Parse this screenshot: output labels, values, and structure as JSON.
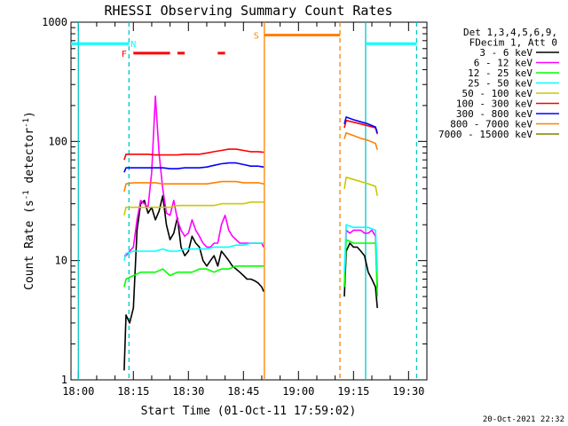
{
  "chart_data": {
    "type": "line",
    "title": "RHESSI Observing Summary Count Rates",
    "xlabel": "Start Time (01-Oct-11 17:59:02)",
    "ylabel_main": "Count Rate (s",
    "ylabel_sup1": "-1",
    "ylabel_mid": " detector",
    "ylabel_sup2": "-1",
    "ylabel_end": ")",
    "y_scale": "log",
    "ylim": [
      1,
      1000
    ],
    "xlim_minutes": [
      -1,
      96
    ],
    "x_ticks": [
      {
        "m": 1,
        "label": "18:00"
      },
      {
        "m": 16,
        "label": "18:15"
      },
      {
        "m": 31,
        "label": "18:30"
      },
      {
        "m": 46,
        "label": "18:45"
      },
      {
        "m": 61,
        "label": "19:00"
      },
      {
        "m": 76,
        "label": "19:15"
      },
      {
        "m": 91,
        "label": "19:30"
      }
    ],
    "y_ticks": [
      {
        "v": 1,
        "label": "1"
      },
      {
        "v": 10,
        "label": "10"
      },
      {
        "v": 100,
        "label": "100"
      },
      {
        "v": 1000,
        "label": "1000"
      }
    ],
    "legend_header": [
      "Det 1,3,4,5,6,9,",
      "FDecim 1, Att 0"
    ],
    "series": [
      {
        "name": "3 - 6 keV",
        "color": "#000000",
        "x": [
          13.5,
          14,
          15,
          16,
          17,
          18,
          19,
          20,
          21,
          22,
          23,
          24,
          25,
          26,
          27,
          28,
          29,
          30,
          31,
          32,
          33,
          34,
          35,
          36,
          37,
          38,
          39,
          40,
          41,
          42,
          43,
          44,
          45,
          46,
          47,
          48,
          49,
          50,
          51,
          51.5,
          73.5,
          74,
          75,
          76,
          77,
          78,
          79,
          80,
          81,
          82,
          82.5
        ],
        "y": [
          1.2,
          3.5,
          3,
          4,
          18,
          30,
          32,
          25,
          28,
          22,
          26,
          35,
          20,
          15,
          17,
          23,
          13,
          11,
          12,
          16,
          14,
          13,
          10,
          9,
          10,
          11,
          9,
          12,
          11,
          10,
          9,
          8.5,
          8,
          7.5,
          7,
          7,
          6.8,
          6.5,
          6,
          5.5,
          5,
          12,
          14,
          13,
          13,
          12,
          11,
          8,
          7,
          6,
          4
        ]
      },
      {
        "name": "6 - 12 keV",
        "color": "#ff00ff",
        "x": [
          13.5,
          14,
          15,
          16,
          17,
          18,
          19,
          20,
          21,
          22,
          23,
          24,
          25,
          26,
          27,
          28,
          29,
          30,
          31,
          32,
          33,
          34,
          35,
          36,
          37,
          38,
          39,
          40,
          41,
          42,
          43,
          44,
          45,
          46,
          47,
          48,
          49,
          50,
          51,
          51.5,
          73.5,
          74,
          75,
          76,
          77,
          78,
          79,
          80,
          81,
          82,
          82.5
        ],
        "y": [
          11,
          11,
          12,
          13,
          22,
          32,
          30,
          28,
          55,
          240,
          80,
          40,
          25,
          24,
          32,
          22,
          18,
          16,
          17,
          22,
          18,
          16,
          14,
          13,
          13,
          14,
          14,
          20,
          24,
          18,
          16,
          15,
          14,
          14,
          14,
          14,
          14,
          14,
          14,
          13,
          6,
          18,
          17,
          18,
          18,
          18,
          17,
          17,
          18,
          16,
          6
        ]
      },
      {
        "name": "12 - 25 keV",
        "color": "#00ff00",
        "x": [
          13.5,
          14,
          16,
          18,
          20,
          22,
          24,
          26,
          28,
          30,
          32,
          34,
          36,
          38,
          40,
          42,
          44,
          46,
          48,
          50,
          51.5,
          73.5,
          74,
          76,
          78,
          80,
          82,
          82.5
        ],
        "y": [
          6,
          7,
          7.5,
          8,
          8,
          8,
          8.5,
          7.5,
          8,
          8,
          8,
          8.5,
          8.5,
          8,
          8.5,
          8.5,
          9,
          9,
          9,
          9,
          9,
          6,
          15,
          14,
          14,
          14,
          14,
          5
        ]
      },
      {
        "name": "25 - 50 keV",
        "color": "#00ffff",
        "x": [
          13.5,
          14,
          16,
          18,
          20,
          22,
          24,
          26,
          28,
          30,
          32,
          34,
          36,
          38,
          40,
          42,
          44,
          46,
          48,
          50,
          51.5,
          73.5,
          74,
          76,
          78,
          80,
          82,
          82.5
        ],
        "y": [
          10,
          11.5,
          12,
          12,
          12,
          12,
          12.5,
          12,
          12,
          12.5,
          12.5,
          12.5,
          12.5,
          13,
          13,
          13,
          13.5,
          13.5,
          14,
          14,
          14,
          8,
          20,
          19,
          19,
          19,
          18,
          8
        ]
      },
      {
        "name": "50 - 100 keV",
        "color": "#c8c800",
        "x": [
          13.5,
          14,
          16,
          18,
          20,
          22,
          24,
          26,
          28,
          30,
          32,
          34,
          36,
          38,
          40,
          42,
          44,
          46,
          48,
          50,
          51.5,
          73.5,
          74,
          76,
          78,
          80,
          82,
          82.5
        ],
        "y": [
          24,
          28,
          28,
          28,
          28,
          28,
          28,
          28,
          29,
          29,
          29,
          29,
          29,
          29,
          30,
          30,
          30,
          30,
          31,
          31,
          31,
          40,
          50,
          48,
          46,
          44,
          42,
          35
        ]
      },
      {
        "name": "100 - 300 keV",
        "color": "#ff0000",
        "x": [
          13.5,
          14,
          16,
          18,
          20,
          22,
          24,
          26,
          28,
          30,
          32,
          34,
          36,
          38,
          40,
          42,
          44,
          46,
          48,
          50,
          51.5,
          73.5,
          74,
          76,
          78,
          80,
          82,
          82.5
        ],
        "y": [
          70,
          78,
          78,
          78,
          78,
          77,
          77,
          77,
          77,
          78,
          78,
          78,
          80,
          82,
          84,
          86,
          86,
          84,
          82,
          82,
          81,
          130,
          150,
          145,
          140,
          135,
          130,
          115
        ]
      },
      {
        "name": "300 - 800 keV",
        "color": "#0000ff",
        "x": [
          13.5,
          14,
          16,
          18,
          20,
          22,
          24,
          26,
          28,
          30,
          32,
          34,
          36,
          38,
          40,
          42,
          44,
          46,
          48,
          50,
          51.5,
          73.5,
          74,
          76,
          78,
          80,
          82,
          82.5
        ],
        "y": [
          55,
          60,
          60,
          60,
          60,
          60,
          60,
          59,
          59,
          60,
          60,
          60,
          61,
          63,
          65,
          66,
          66,
          64,
          62,
          62,
          61,
          140,
          160,
          152,
          146,
          140,
          132,
          118
        ]
      },
      {
        "name": "800 - 7000 keV",
        "color": "#ff8000",
        "x": [
          13.5,
          14,
          16,
          18,
          20,
          22,
          24,
          26,
          28,
          30,
          32,
          34,
          36,
          38,
          40,
          42,
          44,
          46,
          48,
          50,
          51.5,
          73.5,
          74,
          76,
          78,
          80,
          82,
          82.5
        ],
        "y": [
          38,
          44,
          45,
          45,
          45,
          45,
          44,
          44,
          44,
          44,
          44,
          44,
          44,
          45,
          46,
          46,
          46,
          45,
          45,
          45,
          44,
          105,
          118,
          112,
          106,
          102,
          96,
          85
        ]
      },
      {
        "name": "7000 - 15000 keV",
        "color": "#808000",
        "x": [],
        "y": []
      }
    ],
    "shaded_spans": [],
    "attenuator_lines": [
      {
        "label": "",
        "color": "#00c8c8",
        "style": "solid",
        "x": 1
      },
      {
        "label": "",
        "color": "#00c8c8",
        "style": "dashed",
        "x": 14.8
      },
      {
        "label": "",
        "color": "#ff8000",
        "style": "solid",
        "x": 51.7
      },
      {
        "label": "",
        "color": "#ff8000",
        "style": "dashed",
        "x": 72.3
      },
      {
        "label": "",
        "color": "#00c8c8",
        "style": "solid",
        "x": 79.3
      },
      {
        "label": "",
        "color": "#00c8c8",
        "style": "dashed",
        "x": 93.2
      }
    ],
    "flags": {
      "N": {
        "label": "N",
        "color": "#00ffff",
        "segments": [
          [
            -1,
            14.8
          ],
          [
            79.3,
            93.2
          ]
        ],
        "label_x": 16,
        "level": 660
      },
      "F": {
        "label": "F",
        "color": "#ff0000",
        "segments": [
          [
            16,
            26
          ],
          [
            28,
            30
          ],
          [
            39,
            41
          ]
        ],
        "label_x": 13.5,
        "level": 550
      },
      "S": {
        "label": "S",
        "color": "#ff8000",
        "segments": [
          [
            51.7,
            72.3
          ]
        ],
        "label_x": 49.5,
        "level": 780
      }
    },
    "timestamp": "20-Oct-2021 22:32"
  }
}
